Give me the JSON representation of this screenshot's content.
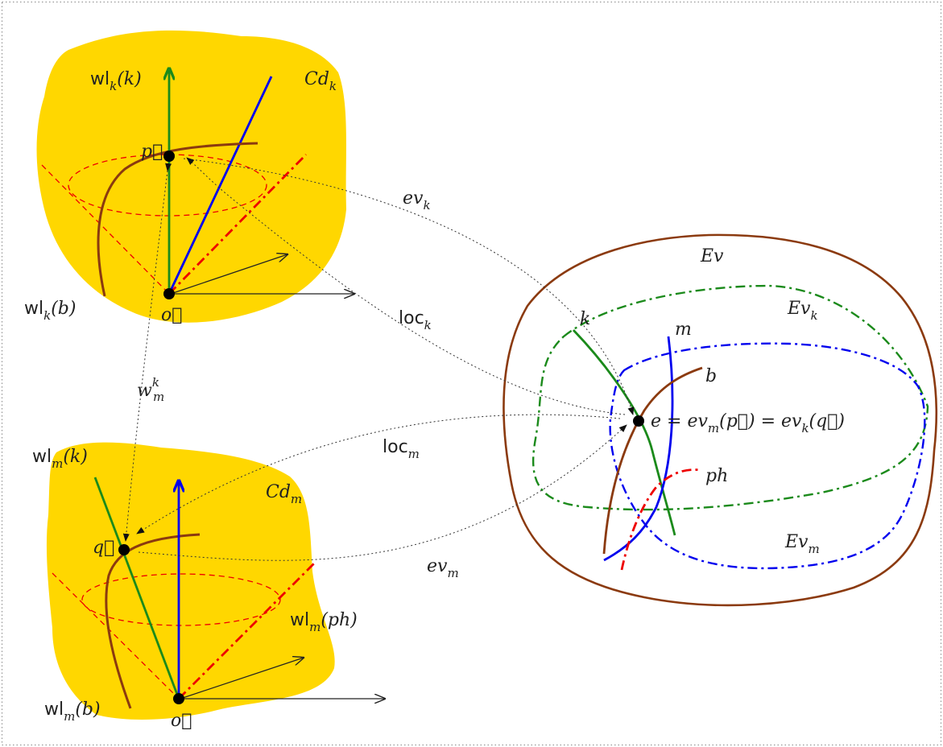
{
  "colors": {
    "region": "#FFD700",
    "worldline_k": "#1b8a1b",
    "worldline_m": "#0000ee",
    "worldline_b": "#8b3a0f",
    "worldline_ph": "#ee0000",
    "envelope": "#8b3a0f",
    "evk": "#1b8a1b",
    "evm": "#0000ee",
    "mapping": "#333333"
  },
  "labels": {
    "cdk_main": "Cd",
    "cdk_sub": "k",
    "cdm_main": "Cd",
    "cdm_sub": "m",
    "wlk_k_main": "wl",
    "wlk_k_sub": "k",
    "wlk_k_arg": "(k)",
    "wlk_b_main": "wl",
    "wlk_b_sub": "k",
    "wlk_b_arg": "(b)",
    "wlm_k_main": "wl",
    "wlm_k_sub": "m",
    "wlm_k_arg": "(k)",
    "wlm_b_main": "wl",
    "wlm_b_sub": "m",
    "wlm_b_arg": "(b)",
    "wlm_ph_main": "wl",
    "wlm_ph_sub": "m",
    "wlm_ph_arg": "(ph)",
    "p_vec": "p⃗",
    "q_vec": "q⃗",
    "o_top": "o⃗",
    "o_bottom": "o⃗",
    "evk_map_main": "ev",
    "evk_map_sub": "k",
    "evm_map_main": "ev",
    "evm_map_sub": "m",
    "lock_main": "loc",
    "lock_sub": "k",
    "locm_main": "loc",
    "locm_sub": "m",
    "wmk_main": "w",
    "wmk_sub": "m",
    "wmk_sup": "k",
    "ev_region": "Ev",
    "evk_region_main": "Ev",
    "evk_region_sub": "k",
    "evm_region_main": "Ev",
    "evm_region_sub": "m",
    "curve_k": "k",
    "curve_m": "m",
    "curve_b": "b",
    "curve_ph": "ph",
    "event_eq_a": "e = ev",
    "event_eq_sub1": "m",
    "event_eq_b": "(p⃗) = ev",
    "event_eq_sub2": "k",
    "event_eq_c": "(q⃗)"
  }
}
